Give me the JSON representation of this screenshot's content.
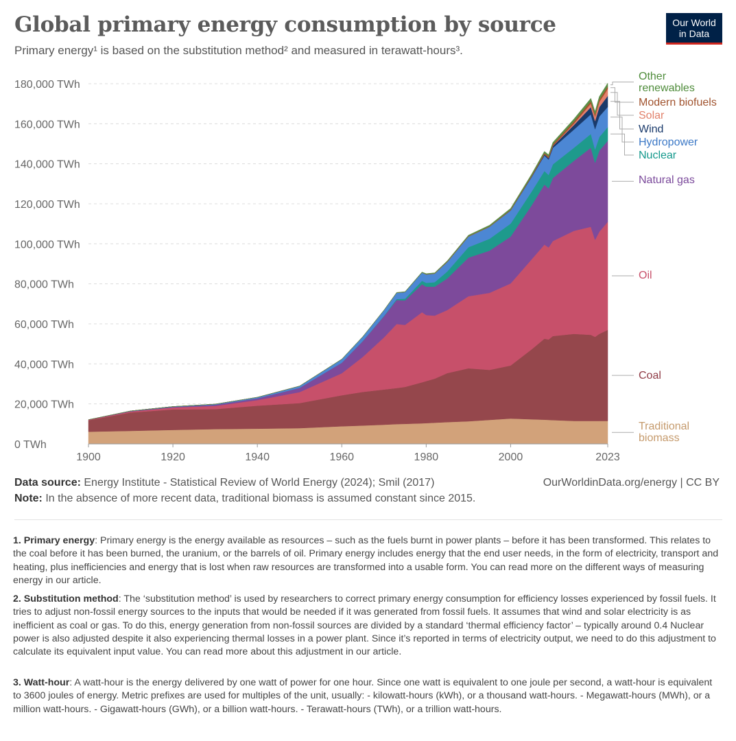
{
  "header": {
    "title": "Global primary energy consumption by source",
    "subtitle": "Primary energy¹ is based on the substitution method² and measured in terawatt-hours³.",
    "logo_line1": "Our World",
    "logo_line2": "in Data"
  },
  "footer": {
    "source_label": "Data source:",
    "source_text": " Energy Institute - Statistical Review of World Energy (2024); Smil (2017)",
    "credit": "OurWorldinData.org/energy | CC BY",
    "note_label": "Note:",
    "note_text": " In the absence of more recent data, traditional biomass is assumed constant since 2015."
  },
  "footnotes": [
    {
      "label": "1. Primary energy",
      "text": ": Primary energy is the energy available as resources – such as the fuels burnt in power plants – before it has been transformed. This relates to the coal before it has been burned, the uranium, or the barrels of oil. Primary energy includes energy that the end user needs, in the form of electricity, transport and heating, plus inefficiencies and energy that is lost when raw resources are transformed into a usable form. You can read more on the different ways of measuring energy in our article."
    },
    {
      "label": "2. Substitution method",
      "text": ": The ‘substitution method’ is used by researchers to correct primary energy consumption for efficiency losses experienced by fossil fuels. It tries to adjust non-fossil energy sources to the inputs that would be needed if it was generated from fossil fuels. It assumes that wind and solar electricity is as inefficient as coal or gas. To do this, energy generation from non-fossil sources are divided by a standard ‘thermal efficiency factor’ – typically around 0.4 Nuclear power is also adjusted despite it also experiencing thermal losses in a power plant. Since it’s reported in terms of electricity output, we need to do this adjustment to calculate its equivalent input value. You can read more about this adjustment in our article."
    },
    {
      "label": "3. Watt-hour",
      "text": ": A watt-hour is the energy delivered by one watt of power for one hour. Since one watt is equivalent to one joule per second, a watt-hour is equivalent to 3600 joules of energy. Metric prefixes are used for multiples of the unit, usually: - kilowatt-hours (kWh), or a thousand watt-hours. - Megawatt-hours (MWh), or a million watt-hours. - Gigawatt-hours (GWh), or a billion watt-hours. - Terawatt-hours (TWh), or a trillion watt-hours."
    }
  ],
  "chart_data": {
    "type": "area",
    "stacked": true,
    "x": [
      1900,
      1910,
      1920,
      1930,
      1940,
      1950,
      1960,
      1965,
      1970,
      1973,
      1975,
      1979,
      1980,
      1982,
      1985,
      1990,
      1995,
      2000,
      2005,
      2008,
      2009,
      2010,
      2015,
      2019,
      2020,
      2021,
      2023
    ],
    "xticks": [
      "1900",
      "1920",
      "1940",
      "1960",
      "1980",
      "2000",
      "2023"
    ],
    "xlim": [
      1900,
      2023
    ],
    "ylim": [
      0,
      180000
    ],
    "yticks": [
      "0 TWh",
      "20,000 TWh",
      "40,000 TWh",
      "60,000 TWh",
      "80,000 TWh",
      "100,000 TWh",
      "120,000 TWh",
      "140,000 TWh",
      "160,000 TWh",
      "180,000 TWh"
    ],
    "ytick_values": [
      0,
      20000,
      40000,
      60000,
      80000,
      100000,
      120000,
      140000,
      160000,
      180000
    ],
    "grid": true,
    "series": [
      {
        "name": "Traditional biomass",
        "color": "#d2a27a",
        "values": [
          6100,
          6500,
          7000,
          7400,
          7600,
          7900,
          8800,
          9200,
          9600,
          9900,
          10000,
          10300,
          10400,
          10600,
          10900,
          11300,
          12000,
          12700,
          12300,
          12100,
          12000,
          11900,
          11500,
          11500,
          11500,
          11500,
          11500
        ]
      },
      {
        "name": "Coal",
        "color": "#95474c",
        "values": [
          5700,
          9200,
          10200,
          10000,
          11500,
          12500,
          15500,
          16800,
          17600,
          18000,
          18500,
          20500,
          21000,
          22000,
          24500,
          26500,
          25000,
          26500,
          35000,
          40500,
          40200,
          42000,
          43500,
          43000,
          42000,
          43500,
          45500
        ]
      },
      {
        "name": "Oil",
        "color": "#c7506a",
        "values": [
          200,
          500,
          1000,
          1600,
          2800,
          5500,
          11000,
          17500,
          26000,
          32000,
          31000,
          35000,
          33000,
          31500,
          31500,
          36000,
          38500,
          41000,
          45000,
          47000,
          46000,
          47500,
          51500,
          54000,
          48500,
          51000,
          54000
        ]
      },
      {
        "name": "Natural gas",
        "color": "#7d4a9b",
        "values": [
          100,
          200,
          300,
          600,
          900,
          2100,
          5300,
          7900,
          10600,
          12000,
          12200,
          14000,
          14200,
          14500,
          15800,
          19300,
          21100,
          23400,
          27000,
          30000,
          29500,
          31500,
          35000,
          39500,
          38500,
          40500,
          40500
        ]
      },
      {
        "name": "Nuclear",
        "color": "#1e9a8c",
        "values": [
          0,
          0,
          0,
          0,
          0,
          0,
          0,
          100,
          200,
          500,
          900,
          1700,
          1900,
          2200,
          3500,
          5200,
          5900,
          6500,
          6900,
          6800,
          6700,
          6800,
          6500,
          6900,
          6700,
          6900,
          6800
        ]
      },
      {
        "name": "Hydropower",
        "color": "#4c87d4",
        "values": [
          0,
          100,
          200,
          300,
          500,
          900,
          1700,
          2100,
          2800,
          3100,
          3300,
          4100,
          4200,
          4300,
          4700,
          5300,
          6000,
          6500,
          7200,
          7700,
          7700,
          8200,
          9100,
          9800,
          10100,
          10200,
          10100
        ]
      },
      {
        "name": "Wind",
        "color": "#1a3a6b",
        "values": [
          0,
          0,
          0,
          0,
          0,
          0,
          0,
          0,
          0,
          0,
          0,
          0,
          0,
          0,
          0,
          0,
          0,
          100,
          300,
          600,
          700,
          900,
          2300,
          3600,
          4100,
          4700,
          5500
        ]
      },
      {
        "name": "Solar",
        "color": "#e4806d",
        "values": [
          0,
          0,
          0,
          0,
          0,
          0,
          0,
          0,
          0,
          0,
          0,
          0,
          0,
          0,
          0,
          0,
          0,
          0,
          0,
          0,
          100,
          100,
          700,
          1800,
          2200,
          2600,
          3500
        ]
      },
      {
        "name": "Modern biofuels",
        "color": "#a8502a",
        "values": [
          0,
          0,
          0,
          0,
          0,
          0,
          0,
          0,
          0,
          0,
          0,
          0,
          100,
          100,
          200,
          200,
          200,
          300,
          400,
          600,
          700,
          800,
          1000,
          1100,
          1000,
          1100,
          1200
        ]
      },
      {
        "name": "Other renewables",
        "color": "#5c8e47",
        "values": [
          0,
          0,
          0,
          0,
          0,
          0,
          100,
          100,
          100,
          200,
          200,
          300,
          300,
          300,
          400,
          500,
          600,
          700,
          800,
          900,
          900,
          1000,
          1300,
          1500,
          1500,
          1600,
          1700
        ]
      }
    ]
  }
}
